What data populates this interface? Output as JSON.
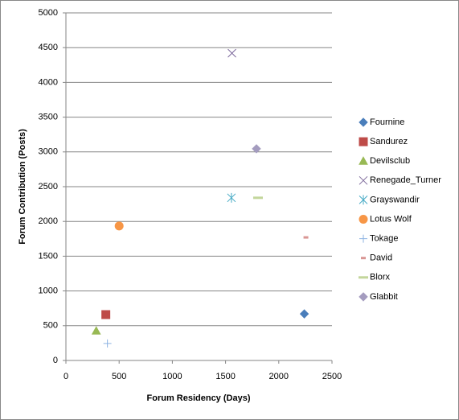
{
  "chart_data": {
    "type": "scatter",
    "x_label": "Forum Residency  (Days)",
    "y_label": "Forum Contribution  (Posts)",
    "xlim": [
      0,
      2500
    ],
    "xticks": [
      0,
      500,
      1000,
      1500,
      2000,
      2500
    ],
    "ylim": [
      0,
      5000
    ],
    "yticks": [
      0,
      500,
      1000,
      1500,
      2000,
      2500,
      3000,
      3500,
      4000,
      4500,
      5000
    ],
    "grid": true,
    "series": [
      {
        "name": "Fournine",
        "color": "#4a7ebb",
        "marker": "diamond",
        "x": [
          2240
        ],
        "values": [
          670
        ]
      },
      {
        "name": "Sandurez",
        "color": "#be4b48",
        "marker": "square",
        "x": [
          375
        ],
        "values": [
          660
        ]
      },
      {
        "name": "Devilsclub",
        "color": "#98b954",
        "marker": "triangle",
        "x": [
          285
        ],
        "values": [
          425
        ]
      },
      {
        "name": "Renegade_Turner",
        "color": "#7e6a9c",
        "marker": "x",
        "x": [
          1560
        ],
        "values": [
          4420
        ]
      },
      {
        "name": "Grayswandir",
        "color": "#46aac5",
        "marker": "star",
        "x": [
          1555
        ],
        "values": [
          2340
        ]
      },
      {
        "name": "Lotus Wolf",
        "color": "#f79646",
        "marker": "circle",
        "x": [
          500
        ],
        "values": [
          1935
        ]
      },
      {
        "name": "Tokage",
        "color": "#8db3e2",
        "marker": "plus",
        "x": [
          390
        ],
        "values": [
          245
        ]
      },
      {
        "name": "David",
        "color": "#d99694",
        "marker": "dash",
        "x": [
          2255
        ],
        "values": [
          1770
        ]
      },
      {
        "name": "Blorx",
        "color": "#c3d69b",
        "marker": "longdash",
        "x": [
          1805
        ],
        "values": [
          2340
        ]
      },
      {
        "name": "Glabbit",
        "color": "#a49cbf",
        "marker": "diamond",
        "x": [
          1790
        ],
        "values": [
          3045
        ]
      }
    ]
  }
}
